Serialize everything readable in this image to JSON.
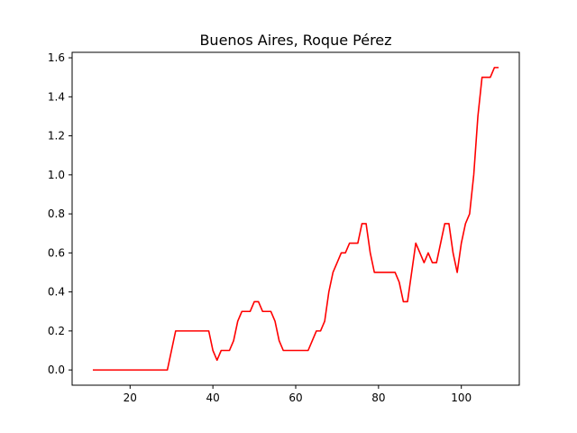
{
  "chart_data": {
    "type": "line",
    "title": "Buenos Aires, Roque Pérez",
    "xlabel": "",
    "ylabel": "",
    "xlim": [
      6,
      114
    ],
    "ylim": [
      -0.078,
      1.628
    ],
    "x_ticks": [
      20,
      40,
      60,
      80,
      100
    ],
    "y_ticks": [
      0.0,
      0.2,
      0.4,
      0.6,
      0.8,
      1.0,
      1.2,
      1.4,
      1.6
    ],
    "x_tick_labels": [
      "20",
      "40",
      "60",
      "80",
      "100"
    ],
    "y_tick_labels": [
      "0.0",
      "0.2",
      "0.4",
      "0.6",
      "0.8",
      "1.0",
      "1.2",
      "1.4",
      "1.6"
    ],
    "grid": false,
    "series": [
      {
        "color": "#ff0000",
        "x": [
          11,
          12,
          13,
          14,
          15,
          16,
          17,
          18,
          19,
          20,
          21,
          22,
          23,
          24,
          25,
          26,
          27,
          28,
          29,
          30,
          31,
          32,
          33,
          34,
          35,
          36,
          37,
          38,
          39,
          40,
          41,
          42,
          43,
          44,
          45,
          46,
          47,
          48,
          49,
          50,
          51,
          52,
          53,
          54,
          55,
          56,
          57,
          58,
          59,
          60,
          61,
          62,
          63,
          64,
          65,
          66,
          67,
          68,
          69,
          70,
          71,
          72,
          73,
          74,
          75,
          76,
          77,
          78,
          79,
          80,
          81,
          82,
          83,
          84,
          85,
          86,
          87,
          88,
          89,
          90,
          91,
          92,
          93,
          94,
          95,
          96,
          97,
          98,
          99,
          100,
          101,
          102,
          103,
          104,
          105,
          106,
          107,
          108,
          109
        ],
        "y": [
          0,
          0,
          0,
          0,
          0,
          0,
          0,
          0,
          0,
          0,
          0,
          0,
          0,
          0,
          0,
          0,
          0,
          0,
          0,
          0.1,
          0.2,
          0.2,
          0.2,
          0.2,
          0.2,
          0.2,
          0.2,
          0.2,
          0.2,
          0.1,
          0.05,
          0.1,
          0.1,
          0.1,
          0.15,
          0.25,
          0.3,
          0.3,
          0.3,
          0.35,
          0.35,
          0.3,
          0.3,
          0.3,
          0.25,
          0.15,
          0.1,
          0.1,
          0.1,
          0.1,
          0.1,
          0.1,
          0.1,
          0.15,
          0.2,
          0.2,
          0.25,
          0.4,
          0.5,
          0.55,
          0.6,
          0.6,
          0.65,
          0.65,
          0.65,
          0.75,
          0.75,
          0.6,
          0.5,
          0.5,
          0.5,
          0.5,
          0.5,
          0.5,
          0.45,
          0.35,
          0.35,
          0.5,
          0.65,
          0.6,
          0.55,
          0.6,
          0.55,
          0.55,
          0.65,
          0.75,
          0.75,
          0.6,
          0.5,
          0.65,
          0.75,
          0.8,
          1.0,
          1.3,
          1.5,
          1.5,
          1.5,
          1.55,
          1.55
        ]
      }
    ]
  }
}
